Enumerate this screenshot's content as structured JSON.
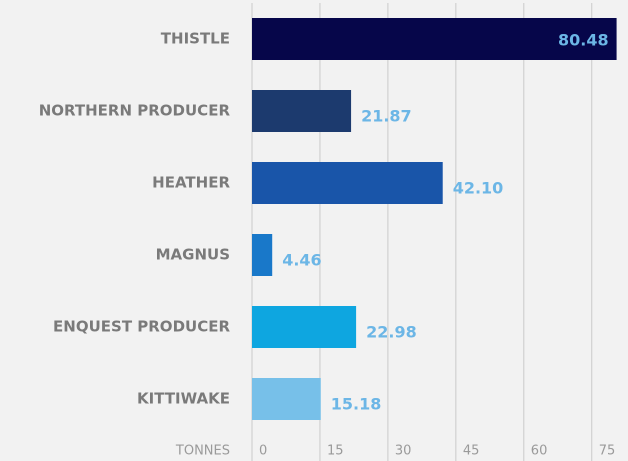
{
  "chart_data": {
    "type": "hbar",
    "categories": [
      "THISTLE",
      "NORTHERN PRODUCER",
      "HEATHER",
      "MAGNUS",
      "ENQUEST PRODUCER",
      "KITTIWAKE"
    ],
    "values": [
      80.48,
      21.87,
      42.1,
      4.46,
      22.98,
      15.18
    ],
    "value_labels": [
      "80.48",
      "21.87",
      "42.10",
      "4.46",
      "22.98",
      "15.18"
    ],
    "colors": [
      "#06064a",
      "#1c3a6e",
      "#1955a9",
      "#1978c9",
      "#0ea6e0",
      "#77c0e9"
    ],
    "xlabel": "TONNES",
    "xlim": [
      0,
      83
    ],
    "xticks": [
      0,
      15,
      30,
      45,
      60,
      75
    ],
    "grid": true
  }
}
